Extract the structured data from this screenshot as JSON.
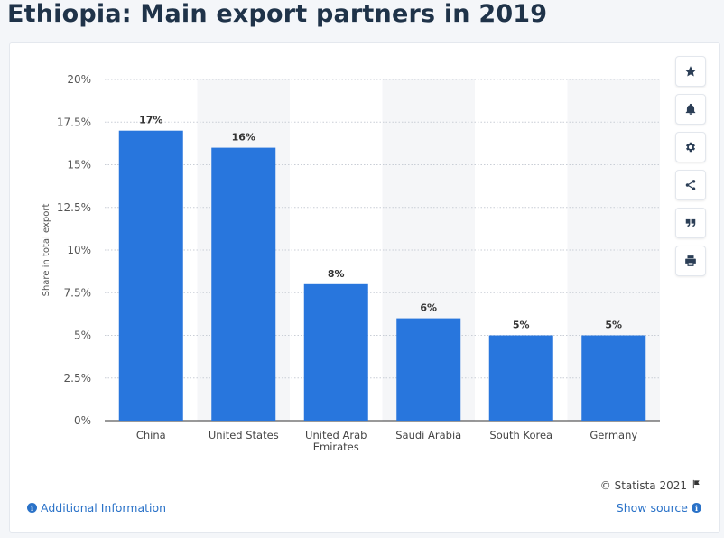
{
  "page": {
    "title": "Ethiopia: Main export partners in 2019"
  },
  "toolbar": {
    "buttons": [
      {
        "icon": "star-icon"
      },
      {
        "icon": "bell-icon"
      },
      {
        "icon": "gear-icon"
      },
      {
        "icon": "share-icon"
      },
      {
        "icon": "quote-icon"
      },
      {
        "icon": "print-icon"
      }
    ]
  },
  "footer": {
    "additional_info": "Additional Information",
    "credit": "© Statista 2021",
    "show_source": "Show source"
  },
  "colors": {
    "bar": "#2876dd",
    "accent": "#2a72c8",
    "band": "#f5f6f8"
  },
  "chart_data": {
    "type": "bar",
    "title": "",
    "xlabel": "",
    "ylabel": "Share in total export",
    "categories": [
      "China",
      "United States",
      "United Arab Emirates",
      "Saudi Arabia",
      "South Korea",
      "Germany"
    ],
    "category_lines": [
      [
        "China"
      ],
      [
        "United States"
      ],
      [
        "United Arab",
        "Emirates"
      ],
      [
        "Saudi Arabia"
      ],
      [
        "South Korea"
      ],
      [
        "Germany"
      ]
    ],
    "values": [
      17,
      16,
      8,
      6,
      5,
      5
    ],
    "value_labels": [
      "17%",
      "16%",
      "8%",
      "6%",
      "5%",
      "5%"
    ],
    "yticks": [
      0,
      2.5,
      5,
      7.5,
      10,
      12.5,
      15,
      17.5,
      20
    ],
    "ytick_labels": [
      "0%",
      "2.5%",
      "5%",
      "7.5%",
      "10%",
      "12.5%",
      "15%",
      "17.5%",
      "20%"
    ],
    "ylim": [
      0,
      20
    ],
    "grid": true,
    "legend": "none"
  }
}
